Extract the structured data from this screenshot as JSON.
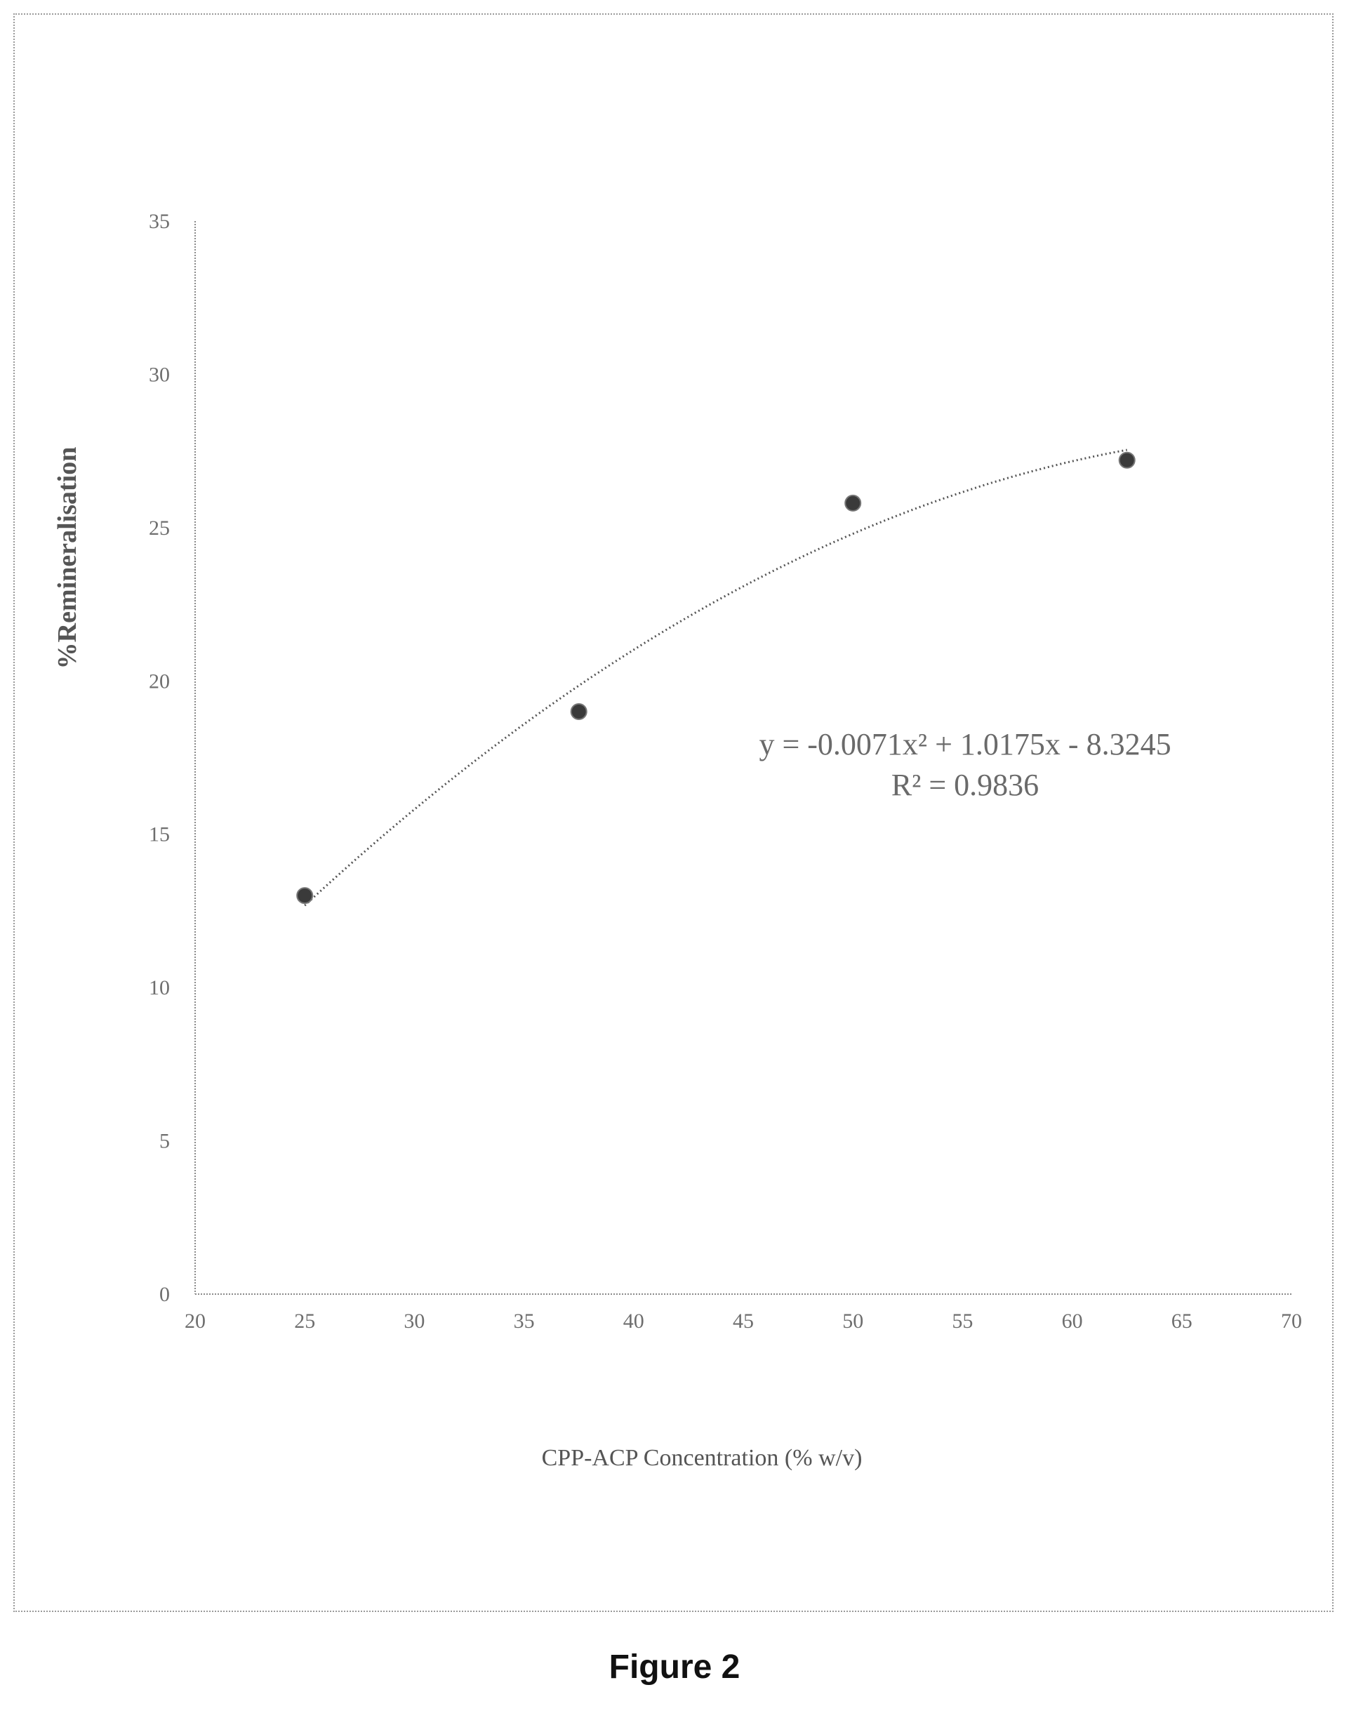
{
  "figure": {
    "caption": "Figure 2"
  },
  "chart_data": {
    "type": "scatter",
    "title": "",
    "xlabel": "CPP-ACP Concentration (% w/v)",
    "ylabel": "%Remineralisation",
    "xlim": [
      20,
      70
    ],
    "ylim": [
      0,
      35
    ],
    "x_ticks": [
      20,
      25,
      30,
      35,
      40,
      45,
      50,
      55,
      60,
      65,
      70
    ],
    "y_ticks": [
      0,
      5,
      10,
      15,
      20,
      25,
      30,
      35
    ],
    "grid": false,
    "legend": "none",
    "series": [
      {
        "points": [
          {
            "x": 25,
            "y": 13.0
          },
          {
            "x": 37.5,
            "y": 19.0
          },
          {
            "x": 50,
            "y": 25.8
          },
          {
            "x": 62.5,
            "y": 27.2
          }
        ]
      }
    ],
    "trendline": {
      "kind": "polynomial",
      "order": 2,
      "coefficients": {
        "a": -0.0071,
        "b": 1.0175,
        "c": -8.3245
      },
      "x_range": [
        25,
        62.5
      ],
      "style": "dotted"
    },
    "annotations": {
      "equation": "y = -0.0071x² + 1.0175x - 8.3245",
      "r_squared": "R² = 0.9836"
    },
    "colors": {
      "marker": "#3a3a3a",
      "axis": "#8a8a8a",
      "trendline": "#555555"
    }
  }
}
